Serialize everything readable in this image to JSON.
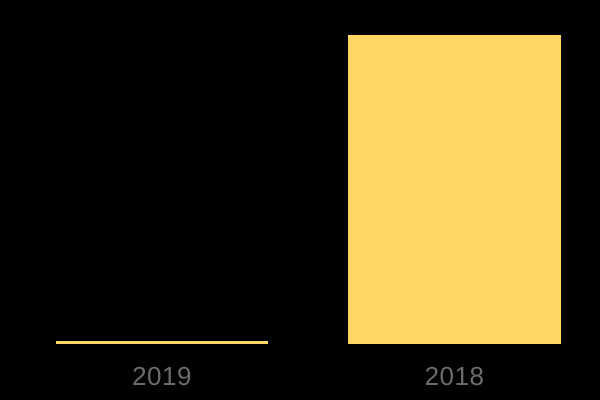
{
  "chart_data": {
    "type": "bar",
    "categories": [
      "2019",
      "2018"
    ],
    "values": [
      1,
      100
    ],
    "values_note": "no axis or data labels visible; values estimated from relative bar heights (2019 bar is ~1% the height of 2018 bar)",
    "title": "",
    "xlabel": "",
    "ylabel": "",
    "ylim": [
      0,
      111
    ],
    "grid": false,
    "legend": false,
    "legend_position": "none"
  },
  "colors": {
    "background": "#000000",
    "bar_fill": "#FDD663",
    "tick_label": "#6B6B6B"
  }
}
